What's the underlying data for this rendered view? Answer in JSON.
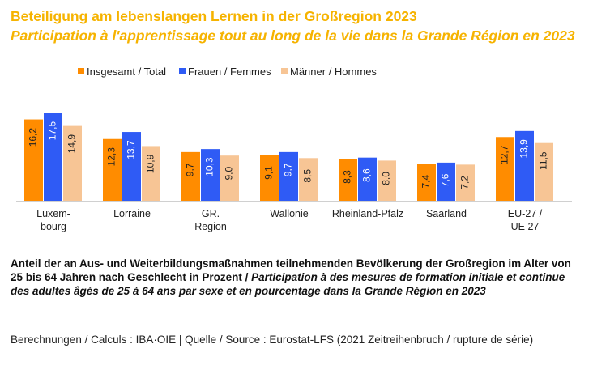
{
  "title_de": "Beteiligung am lebenslangen Lernen in der Großregion 2023",
  "title_fr": "Participation à l'apprentissage tout au long de la vie dans la Grande Région en 2023",
  "chart_data": {
    "type": "bar",
    "title": "Beteiligung am lebenslangen Lernen in der Großregion 2023",
    "categories": [
      "Luxem-\nbourg",
      "Lorraine",
      "GR.\nRegion",
      "Wallonie",
      "Rheinland-Pfalz",
      "Saarland",
      "EU-27 /\nUE 27"
    ],
    "series": [
      {
        "name": "Insgesamt / Total",
        "color": "#ff8c00",
        "values": [
          16.2,
          12.3,
          9.7,
          9.1,
          8.3,
          7.4,
          12.7
        ],
        "labels": [
          "16,2",
          "12,3",
          "9,7",
          "9,1",
          "8,3",
          "7,4",
          "12,7"
        ]
      },
      {
        "name": "Frauen / Femmes",
        "color": "#2f5bf5",
        "values": [
          17.5,
          13.7,
          10.3,
          9.7,
          8.6,
          7.6,
          13.9
        ],
        "labels": [
          "17,5",
          "13,7",
          "10,3",
          "9,7",
          "8,6",
          "7,6",
          "13,9"
        ]
      },
      {
        "name": "Männer / Hommes",
        "color": "#f7c595",
        "values": [
          14.9,
          10.9,
          9.0,
          8.5,
          8.0,
          7.2,
          11.5
        ],
        "labels": [
          "14,9",
          "10,9",
          "9,0",
          "8,5",
          "8,0",
          "7,2",
          "11,5"
        ]
      }
    ],
    "ylim": [
      0,
      18
    ],
    "grid": false,
    "legend": "top",
    "xlabel": "",
    "ylabel": ""
  },
  "caption_bold": "Anteil der an Aus- und Weiterbildungsmaßnahmen teilnehmenden Bevölkerung der Großregion im Alter von 25 bis 64 Jahren nach Geschlecht in Prozent / ",
  "caption_italic": "Participation à des mesures de formation initiale et continue des adultes âgés de 25 à 64 ans par sexe et en pourcentage dans la Grande Région en 2023",
  "source": "Berechnungen / Calculs : IBA·OIE | Quelle / Source : Eurostat-LFS (2021 Zeitreihenbruch / rupture de série)"
}
